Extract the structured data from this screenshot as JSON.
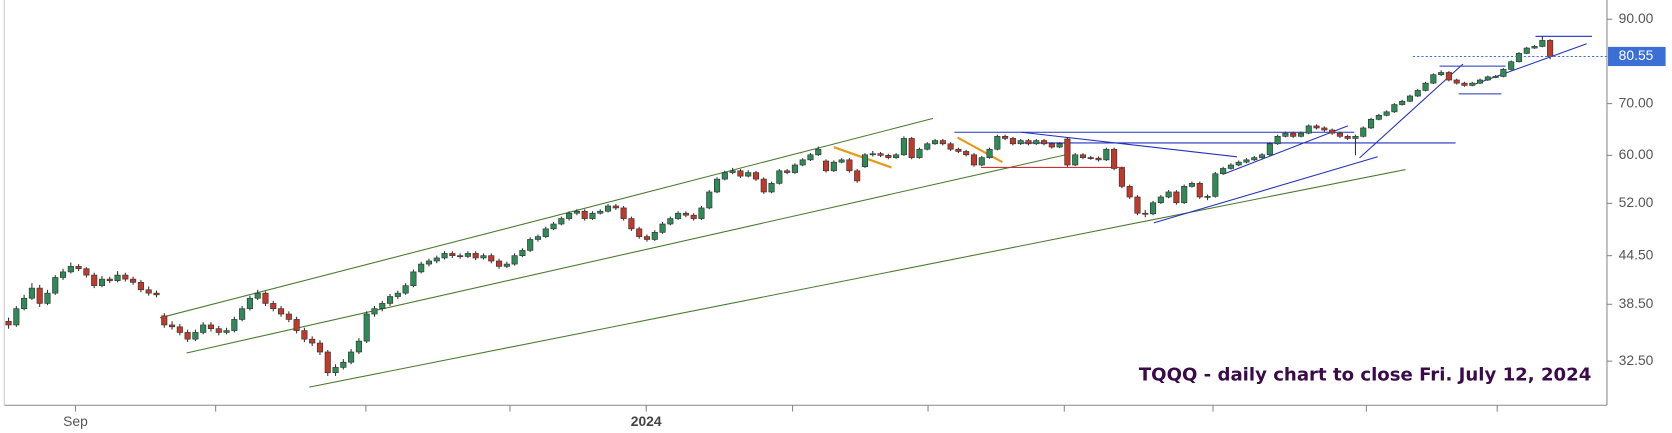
{
  "chart_data": {
    "type": "candlestick",
    "annotation": "TQQQ - daily chart to close Fri. July 12, 2024",
    "up_color": "#2e8b57",
    "down_color": "#c0392b",
    "log_scale": true,
    "ylim": [
      28.5,
      95.3
    ],
    "yticks": [
      {
        "value": 32.5,
        "label": "32.50"
      },
      {
        "value": 38.5,
        "label": "38.50"
      },
      {
        "value": 44.5,
        "label": "44.50"
      },
      {
        "value": 52,
        "label": "52.00"
      },
      {
        "value": 60,
        "label": "60.00"
      },
      {
        "value": 70,
        "label": "70.00"
      },
      {
        "value": 90,
        "label": "90.00"
      }
    ],
    "last_price": {
      "value": 80.55,
      "label": "80.55"
    },
    "last_price_color": "#3b6fd6",
    "xlim": [
      -0.55,
      205.3
    ],
    "xticks": [
      {
        "value": 8.6,
        "label": "Sep"
      },
      {
        "value": 81.9,
        "label": "2024"
      }
    ],
    "xminorticks": [
      26.6,
      45.9,
      64.4,
      100.7,
      118.1,
      135.6,
      154.7,
      174.4,
      191.2
    ],
    "ohlc": [
      [
        36.6,
        37.0,
        35.8,
        36.2
      ],
      [
        36.2,
        38.3,
        36.0,
        38.0
      ],
      [
        38.0,
        39.6,
        37.8,
        39.2
      ],
      [
        39.2,
        41.0,
        39.0,
        40.4
      ],
      [
        40.4,
        40.8,
        38.2,
        38.6
      ],
      [
        38.6,
        40.2,
        38.4,
        39.8
      ],
      [
        39.8,
        42.0,
        39.6,
        41.7
      ],
      [
        41.7,
        42.8,
        41.4,
        42.4
      ],
      [
        42.4,
        43.6,
        42.2,
        43.1
      ],
      [
        43.1,
        43.4,
        42.5,
        42.8
      ],
      [
        42.8,
        43.0,
        41.7,
        42.0
      ],
      [
        42.0,
        42.3,
        40.4,
        40.7
      ],
      [
        40.7,
        41.9,
        40.5,
        41.5
      ],
      [
        41.5,
        41.8,
        41.0,
        41.3
      ],
      [
        41.3,
        42.5,
        41.1,
        42.0
      ],
      [
        42.0,
        42.3,
        41.2,
        41.5
      ],
      [
        41.5,
        41.8,
        40.8,
        41.1
      ],
      [
        41.1,
        41.4,
        39.9,
        40.2
      ],
      [
        40.2,
        40.6,
        39.5,
        39.8
      ],
      [
        39.8,
        40.1,
        39.3,
        39.6
      ],
      [
        37.2,
        37.5,
        35.9,
        36.2
      ],
      [
        36.2,
        36.6,
        35.7,
        36.0
      ],
      [
        36.0,
        36.3,
        35.1,
        35.4
      ],
      [
        35.4,
        35.7,
        34.4,
        34.7
      ],
      [
        34.7,
        35.7,
        34.5,
        35.4
      ],
      [
        35.4,
        36.5,
        35.2,
        36.2
      ],
      [
        36.2,
        36.5,
        35.5,
        35.8
      ],
      [
        35.8,
        36.1,
        35.1,
        35.4
      ],
      [
        35.4,
        35.9,
        35.2,
        35.6
      ],
      [
        35.6,
        37.1,
        35.4,
        36.8
      ],
      [
        36.8,
        38.3,
        36.6,
        38.0
      ],
      [
        38.0,
        39.5,
        37.8,
        39.2
      ],
      [
        39.2,
        40.2,
        39.0,
        39.8
      ],
      [
        39.8,
        40.0,
        38.3,
        38.6
      ],
      [
        38.6,
        38.9,
        37.7,
        38.0
      ],
      [
        38.0,
        38.3,
        37.1,
        37.4
      ],
      [
        37.4,
        37.7,
        36.5,
        36.8
      ],
      [
        36.8,
        37.1,
        35.3,
        35.6
      ],
      [
        35.6,
        35.9,
        34.4,
        34.7
      ],
      [
        34.7,
        35.0,
        34.0,
        34.3
      ],
      [
        34.3,
        34.6,
        33.1,
        33.4
      ],
      [
        33.4,
        33.6,
        31.1,
        31.4
      ],
      [
        31.4,
        32.2,
        31.1,
        31.9
      ],
      [
        31.9,
        32.7,
        31.7,
        32.4
      ],
      [
        32.4,
        33.7,
        32.2,
        33.4
      ],
      [
        33.4,
        34.8,
        33.2,
        34.5
      ],
      [
        34.5,
        37.7,
        34.3,
        37.4
      ],
      [
        37.4,
        38.3,
        37.1,
        38.0
      ],
      [
        38.0,
        38.9,
        37.7,
        38.6
      ],
      [
        38.6,
        39.7,
        38.3,
        39.4
      ],
      [
        39.4,
        40.1,
        39.1,
        39.8
      ],
      [
        39.8,
        41.0,
        39.6,
        40.7
      ],
      [
        40.7,
        42.7,
        40.5,
        42.4
      ],
      [
        42.4,
        43.7,
        42.2,
        43.4
      ],
      [
        43.4,
        44.1,
        43.1,
        43.8
      ],
      [
        43.8,
        44.5,
        43.5,
        44.2
      ],
      [
        44.2,
        45.1,
        44.0,
        44.8
      ],
      [
        44.8,
        45.1,
        44.2,
        44.5
      ],
      [
        44.5,
        44.8,
        44.1,
        44.4
      ],
      [
        44.4,
        45.1,
        44.2,
        44.8
      ],
      [
        44.8,
        45.1,
        43.9,
        44.2
      ],
      [
        44.2,
        44.8,
        44.0,
        44.5
      ],
      [
        44.5,
        44.8,
        43.5,
        43.8
      ],
      [
        43.8,
        44.1,
        42.8,
        43.1
      ],
      [
        43.1,
        43.7,
        42.9,
        43.4
      ],
      [
        43.4,
        44.8,
        43.2,
        44.5
      ],
      [
        44.5,
        45.5,
        44.3,
        45.2
      ],
      [
        45.2,
        47.0,
        45.0,
        46.7
      ],
      [
        46.7,
        47.4,
        46.4,
        47.1
      ],
      [
        47.1,
        48.5,
        46.9,
        48.2
      ],
      [
        48.2,
        49.2,
        48.0,
        48.9
      ],
      [
        48.9,
        50.0,
        48.7,
        49.7
      ],
      [
        49.7,
        50.8,
        49.4,
        50.5
      ],
      [
        50.5,
        51.1,
        50.2,
        50.8
      ],
      [
        50.8,
        51.1,
        49.4,
        49.7
      ],
      [
        49.7,
        50.8,
        49.5,
        50.5
      ],
      [
        50.5,
        51.1,
        50.3,
        50.8
      ],
      [
        50.8,
        51.9,
        50.6,
        51.6
      ],
      [
        51.6,
        51.9,
        51.0,
        51.3
      ],
      [
        51.3,
        51.6,
        49.4,
        49.7
      ],
      [
        49.7,
        50.0,
        47.9,
        48.2
      ],
      [
        48.2,
        48.5,
        46.8,
        47.1
      ],
      [
        47.1,
        47.4,
        46.4,
        46.7
      ],
      [
        46.7,
        48.0,
        46.5,
        47.7
      ],
      [
        47.7,
        49.2,
        47.5,
        48.9
      ],
      [
        48.9,
        50.0,
        48.7,
        49.7
      ],
      [
        49.7,
        50.8,
        49.5,
        50.5
      ],
      [
        50.5,
        50.8,
        49.9,
        50.2
      ],
      [
        50.2,
        50.5,
        49.4,
        49.7
      ],
      [
        49.7,
        51.6,
        49.5,
        51.3
      ],
      [
        51.3,
        54.1,
        51.1,
        53.8
      ],
      [
        53.8,
        56.2,
        53.6,
        55.9
      ],
      [
        55.9,
        57.3,
        55.7,
        57.0
      ],
      [
        57.0,
        57.8,
        56.7,
        57.3
      ],
      [
        57.3,
        57.6,
        56.1,
        56.4
      ],
      [
        56.4,
        57.4,
        56.2,
        57.0
      ],
      [
        57.0,
        57.3,
        55.6,
        55.9
      ],
      [
        55.9,
        56.2,
        53.5,
        53.8
      ],
      [
        53.8,
        55.5,
        53.6,
        55.2
      ],
      [
        55.2,
        57.6,
        55.0,
        57.3
      ],
      [
        57.3,
        57.6,
        56.7,
        57.0
      ],
      [
        57.0,
        58.6,
        56.8,
        58.3
      ],
      [
        58.3,
        59.5,
        58.1,
        59.2
      ],
      [
        59.2,
        60.4,
        59.0,
        60.1
      ],
      [
        60.1,
        61.6,
        59.9,
        61.1
      ],
      [
        59.0,
        59.3,
        57.0,
        57.3
      ],
      [
        57.3,
        59.1,
        57.1,
        58.8
      ],
      [
        58.8,
        59.5,
        58.6,
        59.2
      ],
      [
        59.2,
        59.5,
        57.0,
        57.3
      ],
      [
        57.3,
        57.6,
        55.3,
        55.6
      ],
      [
        58.0,
        60.4,
        57.8,
        60.1
      ],
      [
        60.1,
        60.8,
        59.8,
        60.3
      ],
      [
        60.3,
        60.6,
        59.7,
        60.0
      ],
      [
        60.0,
        60.3,
        59.3,
        59.6
      ],
      [
        59.6,
        60.4,
        59.4,
        60.1
      ],
      [
        60.1,
        63.5,
        59.9,
        63.1
      ],
      [
        63.1,
        63.4,
        59.3,
        59.6
      ],
      [
        59.6,
        61.4,
        59.4,
        61.1
      ],
      [
        61.1,
        62.4,
        60.9,
        62.1
      ],
      [
        62.1,
        63.0,
        61.9,
        62.7
      ],
      [
        62.7,
        63.0,
        61.8,
        62.1
      ],
      [
        62.1,
        62.4,
        60.8,
        61.1
      ],
      [
        61.1,
        61.4,
        60.4,
        60.7
      ],
      [
        60.7,
        61.0,
        59.8,
        60.1
      ],
      [
        60.1,
        60.4,
        58.0,
        58.3
      ],
      [
        58.3,
        59.9,
        58.1,
        59.6
      ],
      [
        59.6,
        61.4,
        59.4,
        61.1
      ],
      [
        61.1,
        63.8,
        60.9,
        63.5
      ],
      [
        63.5,
        63.8,
        62.8,
        63.1
      ],
      [
        63.1,
        63.4,
        61.8,
        62.1
      ],
      [
        62.1,
        63.0,
        61.9,
        62.7
      ],
      [
        62.7,
        63.0,
        61.8,
        62.1
      ],
      [
        62.1,
        63.0,
        61.9,
        62.7
      ],
      [
        62.7,
        63.0,
        61.8,
        62.1
      ],
      [
        62.1,
        62.4,
        61.2,
        61.5
      ],
      [
        61.5,
        62.4,
        61.3,
        62.1
      ],
      [
        63.0,
        63.3,
        58.0,
        58.3
      ],
      [
        58.3,
        60.4,
        58.1,
        60.1
      ],
      [
        60.1,
        60.4,
        59.3,
        59.6
      ],
      [
        59.6,
        59.9,
        59.2,
        59.5
      ],
      [
        59.5,
        59.8,
        58.9,
        59.2
      ],
      [
        59.2,
        61.4,
        59.0,
        61.1
      ],
      [
        61.1,
        61.4,
        57.4,
        57.7
      ],
      [
        57.7,
        58.0,
        54.4,
        54.7
      ],
      [
        54.7,
        55.0,
        52.7,
        53.0
      ],
      [
        53.0,
        53.3,
        50.2,
        50.5
      ],
      [
        50.5,
        51.0,
        49.9,
        50.4
      ],
      [
        50.4,
        52.4,
        50.2,
        52.1
      ],
      [
        52.1,
        53.3,
        51.9,
        53.0
      ],
      [
        53.0,
        54.1,
        52.8,
        53.8
      ],
      [
        53.8,
        54.1,
        51.8,
        52.1
      ],
      [
        52.1,
        55.0,
        51.9,
        54.7
      ],
      [
        54.7,
        55.5,
        54.5,
        55.2
      ],
      [
        55.2,
        55.5,
        52.7,
        53.0
      ],
      [
        53.0,
        53.4,
        52.5,
        53.1
      ],
      [
        53.1,
        57.1,
        52.9,
        56.8
      ],
      [
        56.8,
        58.0,
        56.6,
        57.7
      ],
      [
        57.7,
        58.6,
        57.5,
        58.3
      ],
      [
        58.3,
        59.1,
        58.1,
        58.8
      ],
      [
        58.8,
        59.5,
        58.6,
        59.2
      ],
      [
        59.2,
        59.9,
        59.0,
        59.6
      ],
      [
        59.6,
        60.4,
        59.4,
        60.1
      ],
      [
        60.1,
        62.4,
        59.9,
        62.1
      ],
      [
        62.1,
        63.8,
        61.9,
        63.5
      ],
      [
        63.5,
        64.4,
        63.3,
        64.1
      ],
      [
        64.1,
        64.4,
        63.2,
        63.5
      ],
      [
        63.5,
        64.4,
        63.3,
        64.1
      ],
      [
        64.1,
        65.8,
        63.9,
        65.5
      ],
      [
        65.5,
        65.8,
        64.8,
        65.1
      ],
      [
        65.1,
        65.4,
        64.4,
        64.7
      ],
      [
        64.7,
        65.0,
        63.8,
        64.1
      ],
      [
        64.1,
        64.4,
        63.2,
        63.5
      ],
      [
        63.5,
        63.8,
        62.8,
        63.1
      ],
      [
        63.1,
        63.8,
        60.0,
        63.5
      ],
      [
        63.5,
        65.4,
        63.3,
        65.1
      ],
      [
        65.1,
        67.1,
        64.9,
        66.8
      ],
      [
        66.8,
        67.9,
        66.6,
        67.6
      ],
      [
        67.6,
        68.6,
        67.4,
        68.3
      ],
      [
        68.3,
        70.1,
        68.1,
        69.8
      ],
      [
        69.8,
        70.8,
        69.6,
        70.5
      ],
      [
        70.5,
        71.9,
        70.3,
        71.6
      ],
      [
        71.6,
        73.1,
        71.4,
        72.8
      ],
      [
        72.8,
        74.7,
        72.6,
        74.4
      ],
      [
        74.4,
        76.6,
        74.2,
        76.3
      ],
      [
        76.3,
        77.3,
        76.0,
        76.8
      ],
      [
        76.8,
        77.1,
        74.8,
        75.1
      ],
      [
        75.1,
        75.4,
        74.1,
        74.4
      ],
      [
        74.4,
        74.7,
        73.6,
        73.9
      ],
      [
        73.9,
        74.7,
        73.7,
        74.4
      ],
      [
        74.4,
        75.4,
        74.2,
        75.1
      ],
      [
        75.1,
        76.1,
        74.9,
        75.8
      ],
      [
        75.8,
        76.2,
        75.5,
        75.9
      ],
      [
        75.9,
        77.8,
        75.7,
        77.5
      ],
      [
        77.5,
        79.6,
        77.3,
        79.3
      ],
      [
        79.3,
        81.6,
        79.1,
        81.3
      ],
      [
        81.3,
        82.9,
        81.1,
        82.6
      ],
      [
        82.6,
        83.3,
        82.4,
        83.0
      ],
      [
        83.0,
        85.5,
        82.8,
        84.5
      ],
      [
        84.5,
        84.8,
        79.9,
        80.55
      ]
    ]
  }
}
